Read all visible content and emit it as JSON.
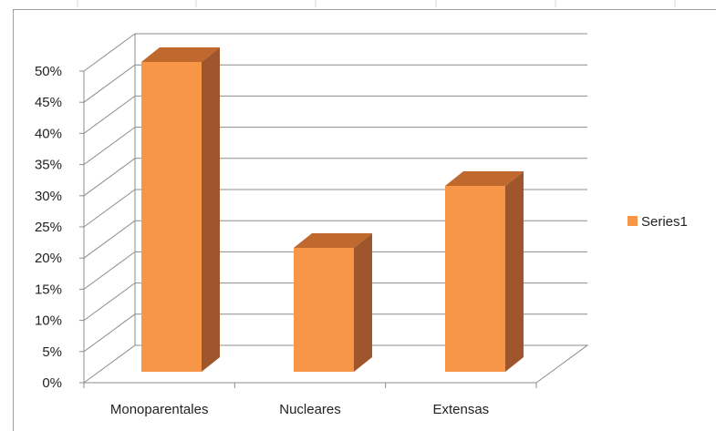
{
  "chart_data": {
    "type": "bar",
    "style": "3d-column",
    "categories": [
      "Monoparentales",
      "Nucleares",
      "Extensas"
    ],
    "series": [
      {
        "name": "Series1",
        "values": [
          0.5,
          0.2,
          0.3
        ],
        "color": "#F79646",
        "side_color": "#A0562C",
        "top_color": "#C0692E"
      }
    ],
    "y_ticks": [
      "0%",
      "5%",
      "10%",
      "15%",
      "20%",
      "25%",
      "30%",
      "35%",
      "40%",
      "45%",
      "50%"
    ],
    "ylim": [
      0,
      0.5
    ],
    "grid": true,
    "legend_position": "right",
    "gridline_color": "#8c8c8c"
  }
}
